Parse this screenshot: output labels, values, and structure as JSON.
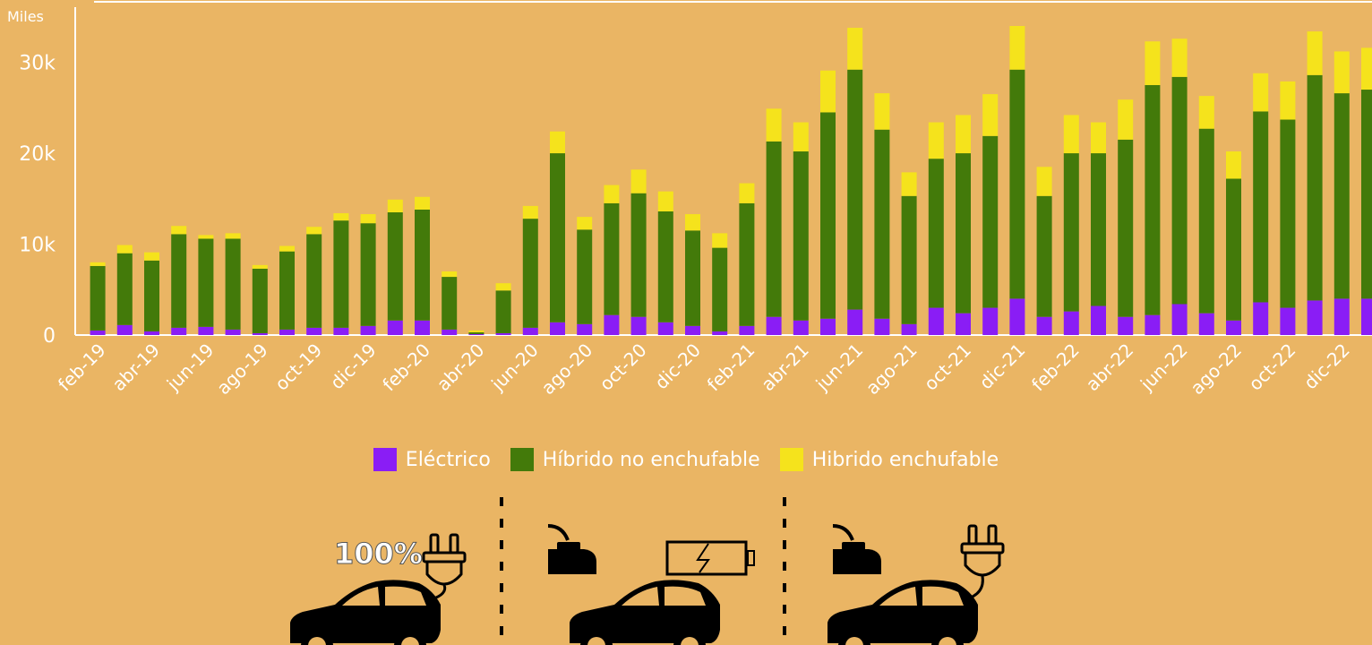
{
  "colors": {
    "background": "#EAB564",
    "electric": "#8A1DF5",
    "hybrid_non_plug": "#437A0A",
    "hybrid_plug": "#F5E31C",
    "axis": "#FFFFFF"
  },
  "legend": {
    "electric": "Eléctrico",
    "hybrid_non_plug": "Híbrido no enchufable",
    "hybrid_plug": "Hibrido enchufable"
  },
  "icons": {
    "electric_badge": "100%",
    "electric": "plug-icon",
    "hybrid_non_plug": "fuel-can-icon",
    "hybrid_battery": "battery-icon",
    "hybrid_plug_fuel": "fuel-can-icon",
    "hybrid_plug_plug": "plug-icon",
    "car": "car-icon"
  },
  "chart_data": {
    "type": "bar",
    "stacked": true,
    "unit_label": "Miles",
    "ylim": [
      0,
      34000
    ],
    "yticks": [
      0,
      10000,
      20000,
      30000
    ],
    "ytick_labels": [
      "0",
      "10k",
      "20k",
      "30k"
    ],
    "x_tick_labels": [
      "feb-19",
      "abr-19",
      "jun-19",
      "ago-19",
      "oct-19",
      "dic-19",
      "feb-20",
      "abr-20",
      "jun-20",
      "ago-20",
      "oct-20",
      "dic-20",
      "feb-21",
      "abr-21",
      "jun-21",
      "ago-21",
      "oct-21",
      "dic-21",
      "feb-22",
      "abr-22",
      "jun-22",
      "ago-22",
      "oct-22",
      "dic-22"
    ],
    "categories": [
      "feb-19",
      "mar-19",
      "abr-19",
      "may-19",
      "jun-19",
      "jul-19",
      "ago-19",
      "sep-19",
      "oct-19",
      "nov-19",
      "dic-19",
      "ene-20",
      "feb-20",
      "mar-20",
      "abr-20",
      "may-20",
      "jun-20",
      "jul-20",
      "ago-20",
      "sep-20",
      "oct-20",
      "nov-20",
      "dic-20",
      "ene-21",
      "feb-21",
      "mar-21",
      "abr-21",
      "may-21",
      "jun-21",
      "jul-21",
      "ago-21",
      "sep-21",
      "oct-21",
      "nov-21",
      "dic-21",
      "ene-22",
      "feb-22",
      "mar-22",
      "abr-22",
      "may-22",
      "jun-22",
      "jul-22",
      "ago-22",
      "sep-22",
      "oct-22",
      "nov-22",
      "dic-22",
      "ene-23"
    ],
    "series": [
      {
        "name": "Eléctrico",
        "values": [
          500,
          1100,
          400,
          800,
          900,
          600,
          200,
          600,
          800,
          800,
          1000,
          1600,
          1600,
          600,
          100,
          200,
          800,
          1400,
          1200,
          2200,
          2000,
          1400,
          1000,
          400,
          1000,
          2000,
          1600,
          1800,
          2800,
          1800,
          1200,
          3000,
          2400,
          3000,
          4000,
          2000,
          2600,
          3200,
          2000,
          2200,
          3400,
          2400,
          1600,
          3600,
          3000,
          3800,
          4000,
          4000
        ]
      },
      {
        "name": "Híbrido no enchufable",
        "values": [
          7100,
          7900,
          7800,
          10300,
          9700,
          10000,
          7100,
          8600,
          10300,
          11800,
          11300,
          11900,
          12200,
          5800,
          200,
          4700,
          12000,
          18600,
          10400,
          12300,
          13600,
          12200,
          10500,
          9200,
          13500,
          19300,
          18600,
          22700,
          26400,
          20800,
          14100,
          16400,
          17600,
          18900,
          25200,
          13300,
          17400,
          16800,
          19500,
          25300,
          25000,
          20300,
          15600,
          21000,
          20700,
          24800,
          22600,
          23000
        ]
      },
      {
        "name": "Hibrido enchufable",
        "values": [
          400,
          900,
          900,
          900,
          400,
          600,
          400,
          600,
          800,
          800,
          1000,
          1400,
          1400,
          600,
          200,
          800,
          1400,
          2400,
          1400,
          2000,
          2600,
          2200,
          1800,
          1600,
          2200,
          3600,
          3200,
          4600,
          4600,
          4000,
          2600,
          4000,
          4200,
          4600,
          4800,
          3200,
          4200,
          3400,
          4400,
          4800,
          4200,
          3600,
          3000,
          4200,
          4200,
          4800,
          4600,
          4600
        ]
      }
    ]
  }
}
